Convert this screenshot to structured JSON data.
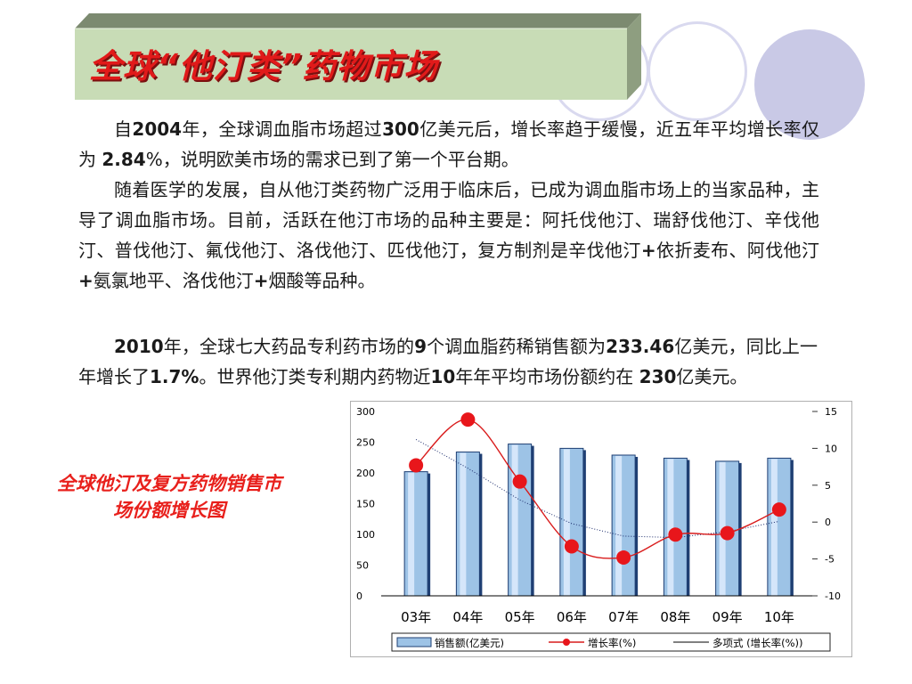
{
  "slide": {
    "title": "全球“他汀类”药物市场",
    "paragraphs": [
      [
        {
          "t": "自",
          "b": false
        },
        {
          "t": "2004",
          "b": true
        },
        {
          "t": "年，全球调血脂市场超过",
          "b": false
        },
        {
          "t": "300",
          "b": true
        },
        {
          "t": "亿美元后，增长率趋于缓慢，近五年平均增长率仅为 ",
          "b": false
        },
        {
          "t": "2.84",
          "b": true
        },
        {
          "t": "%，说明欧美市场的需求已到了第一个平台期。",
          "b": false
        }
      ],
      [
        {
          "t": "随着医学的发展，自从他汀类药物广泛用于临床后，已成为调血脂市场上的当家品种，主导了调血脂市场。目前，活跃在他汀市场的品种主要是：阿托伐他汀、瑞舒伐他汀、辛伐他汀、普伐他汀、氟伐他汀、洛伐他汀、匹伐他汀，复方制剂是辛伐他汀",
          "b": false
        },
        {
          "t": "+",
          "b": true
        },
        {
          "t": "依折麦布、阿伐他汀",
          "b": false
        },
        {
          "t": "+",
          "b": true
        },
        {
          "t": "氨氯地平、洛伐他汀",
          "b": false
        },
        {
          "t": "+",
          "b": true
        },
        {
          "t": "烟酸等品种。",
          "b": false
        }
      ],
      [
        {
          "t": "2010",
          "b": true
        },
        {
          "t": "年，全球七大药品专利药市场的",
          "b": false
        },
        {
          "t": "9",
          "b": true
        },
        {
          "t": "个调血脂药稀销售额为",
          "b": false
        },
        {
          "t": "233.46",
          "b": true
        },
        {
          "t": "亿美元，同比上一年增长了",
          "b": false
        },
        {
          "t": "1.7%",
          "b": true
        },
        {
          "t": "。世界他汀类专利期内药物近",
          "b": false
        },
        {
          "t": "10",
          "b": true
        },
        {
          "t": "年年平均市场份额约在 ",
          "b": false
        },
        {
          "t": "230",
          "b": true
        },
        {
          "t": "亿美元。",
          "b": false
        }
      ]
    ],
    "chart_caption": "全球他汀及复方药物销售市场份额增长图",
    "colors": {
      "title_red": "#e11a1a",
      "title_bar_face": "#c8dcb6",
      "bar_fill": "#9dc3e6",
      "bar_edge": "#1f3f73",
      "growth_line": "#d91c1c",
      "trend_line": "#1b2b6b",
      "circle_light": "#d9d9ef",
      "circle_fill": "#c9c9e6"
    }
  },
  "chart_data": {
    "type": "bar",
    "categories": [
      "03年",
      "04年",
      "05年",
      "06年",
      "07年",
      "08年",
      "09年",
      "10年"
    ],
    "series": [
      {
        "name": "销售额(亿美元)",
        "type": "bar",
        "axis": "left",
        "values": [
          202,
          234,
          247,
          240,
          229,
          224,
          219,
          224
        ]
      },
      {
        "name": "增长率(%)",
        "type": "line",
        "axis": "right",
        "values": [
          7.7,
          13.9,
          5.5,
          -3.3,
          -4.8,
          -1.7,
          -1.5,
          1.7
        ]
      },
      {
        "name": "多项式 (增长率(%))",
        "type": "trendline",
        "axis": "right",
        "values": [
          11.2,
          7.3,
          3.0,
          -0.2,
          -1.9,
          -2.1,
          -1.3,
          0.1
        ]
      }
    ],
    "y_left": {
      "ticks": [
        "300",
        "250",
        "200",
        "150",
        "100",
        "50",
        "0"
      ],
      "ylim": [
        0,
        300
      ]
    },
    "y_right": {
      "ticks": [
        "15",
        "10",
        "5",
        "0",
        "-5",
        "-10"
      ],
      "ylim": [
        -10,
        15
      ]
    },
    "legend": [
      "销售额(亿美元)",
      "增长率(%)",
      "多项式 (增长率(%))"
    ],
    "legend_position": "bottom",
    "grid": false
  }
}
